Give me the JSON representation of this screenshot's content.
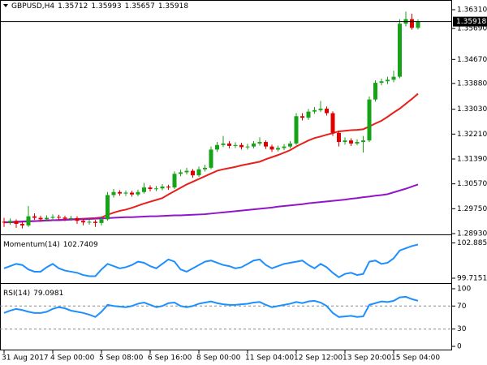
{
  "chart_data": [
    {
      "type": "candlestick",
      "title": "GBPUSD,H4",
      "categories": [
        "31 Aug 2017",
        null,
        null,
        null,
        null,
        null,
        null,
        null,
        "4 Sep 00:00",
        null,
        null,
        null,
        null,
        null,
        null,
        null,
        "5 Sep 08:00",
        null,
        null,
        null,
        null,
        null,
        null,
        null,
        "6 Sep 16:00",
        null,
        null,
        null,
        null,
        null,
        null,
        null,
        "8 Sep 00:00",
        null,
        null,
        null,
        null,
        null,
        null,
        null,
        "11 Sep 04:00",
        null,
        null,
        null,
        null,
        null,
        null,
        null,
        "12 Sep 12:00",
        null,
        null,
        null,
        null,
        null,
        null,
        null,
        "13 Sep 20:00",
        null,
        null,
        null,
        null,
        null,
        null,
        null,
        "15 Sep 04:00",
        null,
        null,
        null,
        null
      ],
      "open": [
        1.2932,
        1.293,
        1.2935,
        1.2925,
        1.292,
        1.295,
        1.2945,
        1.294,
        1.2945,
        1.2948,
        1.2946,
        1.2942,
        1.2944,
        1.2935,
        1.293,
        1.2932,
        1.2928,
        1.294,
        1.302,
        1.303,
        1.3025,
        1.3028,
        1.3022,
        1.303,
        1.3045,
        1.304,
        1.3042,
        1.3048,
        1.3045,
        1.309,
        1.3095,
        1.31,
        1.3085,
        1.3105,
        1.311,
        1.317,
        1.3185,
        1.319,
        1.3182,
        1.3185,
        1.3178,
        1.318,
        1.319,
        1.3195,
        1.318,
        1.317,
        1.3175,
        1.318,
        1.319,
        1.328,
        1.3275,
        1.3295,
        1.33,
        1.3305,
        1.329,
        1.3225,
        1.3195,
        1.32,
        1.319,
        1.3195,
        1.32,
        1.3335,
        1.339,
        1.3395,
        1.34,
        1.341,
        1.3585,
        1.36,
        1.35712
      ],
      "high": [
        1.2945,
        1.2943,
        1.294,
        1.2932,
        1.2984,
        1.296,
        1.2952,
        1.2953,
        1.2956,
        1.2955,
        1.2952,
        1.2951,
        1.295,
        1.2942,
        1.294,
        1.2938,
        1.295,
        1.303,
        1.304,
        1.3036,
        1.3035,
        1.3034,
        1.3038,
        1.306,
        1.3052,
        1.305,
        1.3056,
        1.3054,
        1.3098,
        1.3104,
        1.311,
        1.3106,
        1.3114,
        1.312,
        1.318,
        1.3195,
        1.3215,
        1.3198,
        1.3194,
        1.3192,
        1.3189,
        1.3198,
        1.321,
        1.32,
        1.3186,
        1.3183,
        1.3188,
        1.3198,
        1.329,
        1.329,
        1.3304,
        1.331,
        1.333,
        1.3312,
        1.3296,
        1.3232,
        1.321,
        1.3207,
        1.3204,
        1.3215,
        1.3345,
        1.3398,
        1.3404,
        1.341,
        1.343,
        1.36,
        1.3625,
        1.3618,
        1.35993
      ],
      "low": [
        1.2915,
        1.2922,
        1.2912,
        1.291,
        1.2915,
        1.2938,
        1.2932,
        1.2933,
        1.2938,
        1.2938,
        1.2934,
        1.2935,
        1.2925,
        1.292,
        1.2922,
        1.2915,
        1.292,
        1.2935,
        1.3012,
        1.3018,
        1.3017,
        1.3015,
        1.3016,
        1.3025,
        1.3032,
        1.3033,
        1.3036,
        1.3037,
        1.304,
        1.3082,
        1.3088,
        1.3077,
        1.308,
        1.3098,
        1.3105,
        1.3162,
        1.3178,
        1.3174,
        1.3175,
        1.317,
        1.317,
        1.3174,
        1.3183,
        1.3172,
        1.3162,
        1.3164,
        1.3168,
        1.3174,
        1.3185,
        1.3266,
        1.3268,
        1.3288,
        1.3294,
        1.3282,
        1.3215,
        1.318,
        1.3186,
        1.3182,
        1.3184,
        1.316,
        1.3195,
        1.3328,
        1.3382,
        1.3386,
        1.3392,
        1.3405,
        1.3576,
        1.3565,
        1.35657
      ],
      "close": [
        1.293,
        1.2935,
        1.2925,
        1.292,
        1.295,
        1.2945,
        1.294,
        1.2945,
        1.2948,
        1.2946,
        1.2942,
        1.2944,
        1.2935,
        1.293,
        1.2932,
        1.2928,
        1.294,
        1.302,
        1.303,
        1.3025,
        1.3028,
        1.3022,
        1.303,
        1.3045,
        1.304,
        1.3042,
        1.3048,
        1.3045,
        1.309,
        1.3095,
        1.31,
        1.3085,
        1.3105,
        1.311,
        1.317,
        1.3185,
        1.319,
        1.3182,
        1.3185,
        1.3178,
        1.318,
        1.319,
        1.3195,
        1.318,
        1.317,
        1.3175,
        1.318,
        1.319,
        1.328,
        1.3275,
        1.3295,
        1.33,
        1.3305,
        1.329,
        1.3225,
        1.3195,
        1.32,
        1.319,
        1.3195,
        1.32,
        1.3335,
        1.339,
        1.3395,
        1.34,
        1.341,
        1.3585,
        1.36,
        1.35712,
        1.35918
      ],
      "up_color": "#17a317",
      "down_color": "#e00000",
      "series": [
        {
          "color": "#e8201a",
          "values": [
            1.293,
            1.293,
            1.2931,
            1.2932,
            1.2933,
            1.2934,
            1.2935,
            1.2936,
            1.2937,
            1.2938,
            1.2939,
            1.294,
            1.2941,
            1.2942,
            1.2943,
            1.2944,
            1.2946,
            1.2955,
            1.2962,
            1.2968,
            1.2972,
            1.2978,
            1.2985,
            1.2992,
            1.2998,
            1.3004,
            1.301,
            1.3022,
            1.3033,
            1.3044,
            1.3055,
            1.3064,
            1.3073,
            1.3082,
            1.3091,
            1.31,
            1.3105,
            1.3109,
            1.3113,
            1.3118,
            1.3122,
            1.3126,
            1.313,
            1.3138,
            1.3145,
            1.3152,
            1.316,
            1.3168,
            1.318,
            1.319,
            1.32,
            1.3208,
            1.3213,
            1.3219,
            1.3224,
            1.323,
            1.3232,
            1.3234,
            1.3235,
            1.3237,
            1.3246,
            1.3256,
            1.3265,
            1.3278,
            1.3292,
            1.3305,
            1.3321,
            1.3337,
            1.3354
          ]
        },
        {
          "color": "#9016c8",
          "values": [
            1.293,
            1.2931,
            1.2932,
            1.2933,
            1.2934,
            1.2934,
            1.2935,
            1.2936,
            1.2937,
            1.2937,
            1.2938,
            1.2939,
            1.294,
            1.294,
            1.2941,
            1.2942,
            1.2943,
            1.2944,
            1.2945,
            1.2946,
            1.2947,
            1.2947,
            1.2948,
            1.2949,
            1.295,
            1.295,
            1.2951,
            1.2952,
            1.2953,
            1.2953,
            1.2954,
            1.2955,
            1.2956,
            1.2957,
            1.2959,
            1.2961,
            1.2963,
            1.2965,
            1.2967,
            1.2969,
            1.2971,
            1.2973,
            1.2975,
            1.2977,
            1.2979,
            1.2982,
            1.2984,
            1.2986,
            1.2988,
            1.299,
            1.2993,
            1.2995,
            1.2997,
            1.2999,
            1.3001,
            1.3003,
            1.3005,
            1.3008,
            1.301,
            1.3013,
            1.3015,
            1.3018,
            1.302,
            1.3023,
            1.3029,
            1.3035,
            1.3041,
            1.3048,
            1.3055
          ]
        }
      ],
      "ylim": [
        1.2893,
        1.3663
      ],
      "yticks": [
        {
          "value": 1.3631,
          "label": "1.36310"
        },
        {
          "value": 1.3569,
          "label": "1.35690"
        },
        {
          "value": 1.3467,
          "label": "1.34670"
        },
        {
          "value": 1.3388,
          "label": "1.33880"
        },
        {
          "value": 1.3303,
          "label": "1.33030"
        },
        {
          "value": 1.3221,
          "label": "1.32210"
        },
        {
          "value": 1.3139,
          "label": "1.31390"
        },
        {
          "value": 1.3057,
          "label": "1.30570"
        },
        {
          "value": 1.2975,
          "label": "1.29750"
        },
        {
          "value": 1.2893,
          "label": "1.28930"
        }
      ],
      "price_line": true,
      "grid": false
    },
    {
      "type": "line",
      "title": "Momentum(14)",
      "color": "#1e8fff",
      "values": [
        100.6,
        100.8,
        101.0,
        100.9,
        100.5,
        100.3,
        100.3,
        100.7,
        101.0,
        100.6,
        100.4,
        100.3,
        100.2,
        100.0,
        99.9,
        99.9,
        100.5,
        101.0,
        100.8,
        100.6,
        100.7,
        100.9,
        101.2,
        101.1,
        100.8,
        100.6,
        101.0,
        101.4,
        101.2,
        100.5,
        100.3,
        100.6,
        100.9,
        101.2,
        101.3,
        101.1,
        100.9,
        100.8,
        100.6,
        100.7,
        101.0,
        101.3,
        101.4,
        100.9,
        100.6,
        100.8,
        101.0,
        101.1,
        101.2,
        101.3,
        100.9,
        100.6,
        101.0,
        100.7,
        100.2,
        99.8,
        100.1,
        100.2,
        100.0,
        100.1,
        101.2,
        101.3,
        101.0,
        101.1,
        101.5,
        102.2,
        102.4,
        102.6,
        102.7409
      ],
      "ylim": [
        99.35,
        103.5
      ],
      "yticks": [
        102.885,
        99.7151
      ]
    },
    {
      "type": "line",
      "title": "RSI(14)",
      "color": "#1e8fff",
      "values": [
        58,
        62,
        65,
        63,
        60,
        58,
        58,
        60,
        65,
        68,
        66,
        62,
        60,
        58,
        55,
        51,
        60,
        72,
        70,
        69,
        68,
        70,
        74,
        76,
        72,
        68,
        70,
        75,
        76,
        70,
        68,
        70,
        74,
        76,
        78,
        75,
        73,
        72,
        72,
        73,
        74,
        76,
        77,
        72,
        68,
        70,
        72,
        74,
        77,
        75,
        78,
        79,
        76,
        70,
        58,
        51,
        52,
        53,
        51,
        52,
        72,
        75,
        78,
        77,
        79,
        85,
        86,
        82,
        79.0981
      ],
      "ylim": [
        -7,
        107
      ],
      "yticks": [
        100,
        70,
        30,
        0
      ],
      "levels": [
        70,
        30
      ]
    }
  ]
}
